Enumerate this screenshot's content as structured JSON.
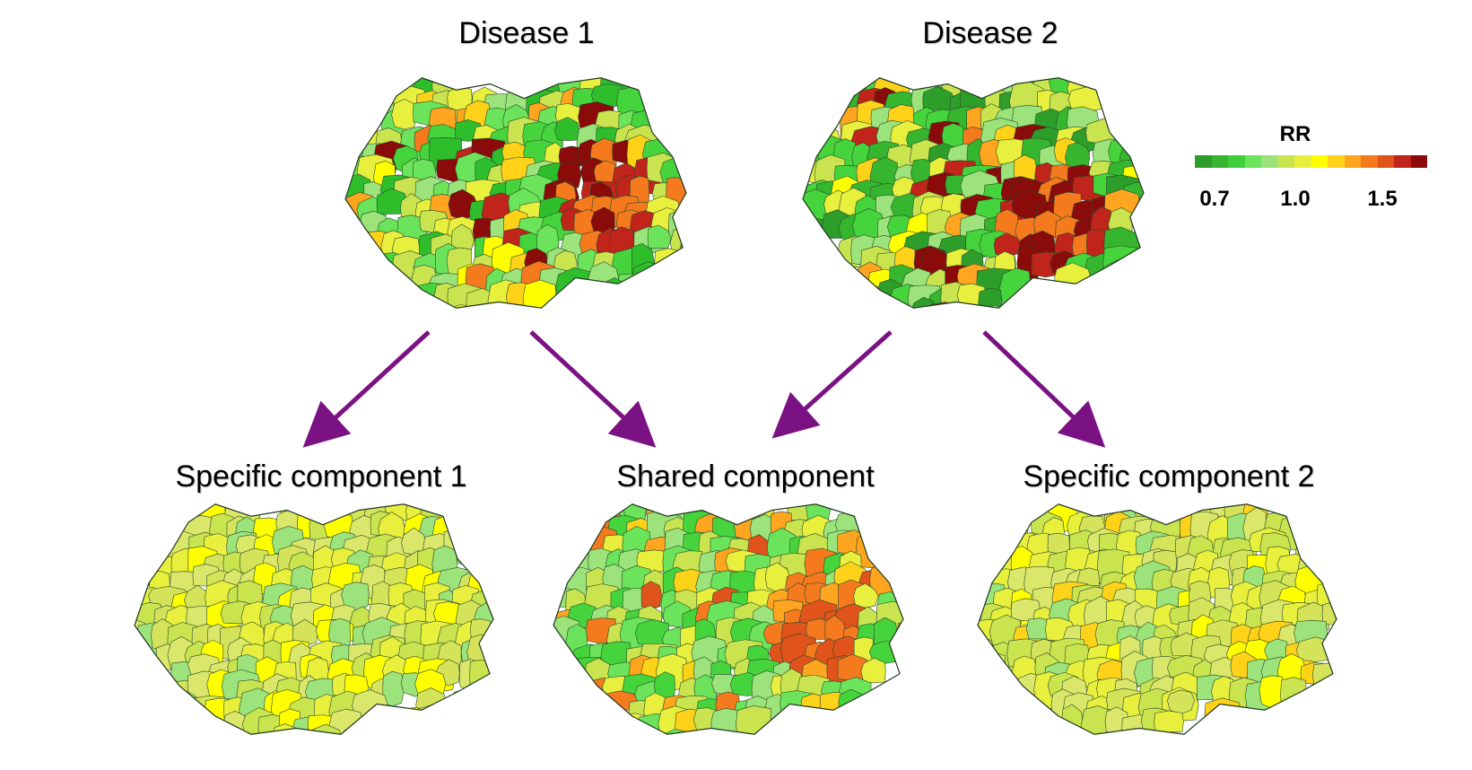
{
  "panels": {
    "disease1": {
      "title": "Disease 1"
    },
    "disease2": {
      "title": "Disease 2"
    },
    "specific1": {
      "title": "Specific component 1"
    },
    "shared": {
      "title": "Shared component"
    },
    "specific2": {
      "title": "Specific component 2"
    }
  },
  "legend": {
    "title": "RR",
    "ticks": [
      "0.7",
      "1.0",
      "1.5"
    ],
    "colors": [
      "#2e9e2a",
      "#36b52f",
      "#3fcf3a",
      "#6be35a",
      "#9be37a",
      "#c9e44f",
      "#e8ef3d",
      "#ffff00",
      "#ffd21a",
      "#ffa51f",
      "#f47a1d",
      "#e0531a",
      "#c0241a",
      "#8b0a0a"
    ]
  },
  "arrow_color": "#7b1283",
  "map_palettes": {
    "disease1": [
      "#2ebd2b",
      "#46d43c",
      "#6be35a",
      "#9be37a",
      "#c9e44f",
      "#e8ef3d",
      "#ffff00",
      "#ffd21a",
      "#ffa51f",
      "#f47a1d",
      "#c0241a",
      "#8b0a0a"
    ],
    "disease2": [
      "#2e9e2a",
      "#36b52f",
      "#46d43c",
      "#9be37a",
      "#c9e44f",
      "#e8ef3d",
      "#ffff00",
      "#ffd21a",
      "#ffa51f",
      "#f47a1d",
      "#c0241a",
      "#8b0a0a"
    ],
    "specific1": [
      "#c9e44f",
      "#d4e35a",
      "#dbe76a",
      "#e8ef3d",
      "#ffff00",
      "#9be37a"
    ],
    "shared": [
      "#46d43c",
      "#6be35a",
      "#9be37a",
      "#c9e44f",
      "#e8ef3d",
      "#ffd21a",
      "#ffa51f",
      "#f47a1d",
      "#e0531a"
    ],
    "specific2": [
      "#c9e44f",
      "#d4e35a",
      "#dbe76a",
      "#e8ef3d",
      "#ffff00",
      "#ffd21a",
      "#9be37a"
    ]
  }
}
